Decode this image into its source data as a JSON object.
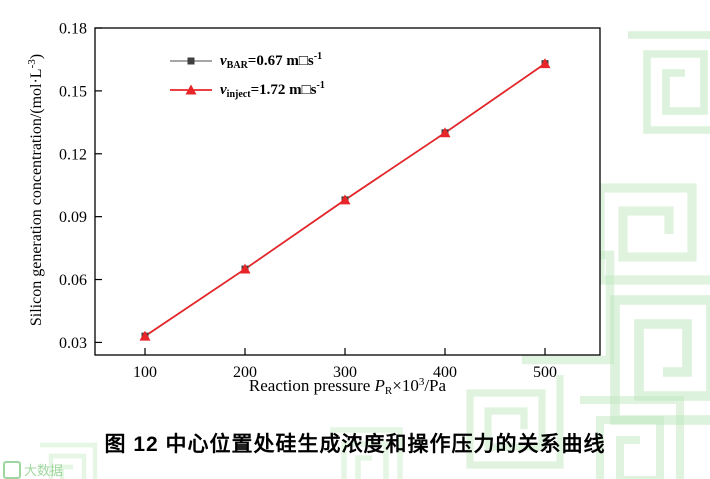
{
  "chart_data": {
    "type": "line",
    "title": "",
    "xlabel_parts": {
      "pre": "Reaction pressure ",
      "var": "P",
      "sub": "R",
      "mid": "×10",
      "sup": "3",
      "end": "/Pa"
    },
    "ylabel_parts": {
      "pre": "Silicon generation concentration/(mol·L",
      "sup": "-3",
      "end": ")"
    },
    "x": [
      100,
      200,
      300,
      400,
      500
    ],
    "xticks": [
      "100",
      "200",
      "300",
      "400",
      "500"
    ],
    "yticks": [
      "0.03",
      "0.06",
      "0.09",
      "0.12",
      "0.15",
      "0.18"
    ],
    "xlim": [
      50,
      555
    ],
    "ylim": [
      0.024,
      0.18
    ],
    "grid": false,
    "legend_position": "inside-top-left",
    "series": [
      {
        "name_parts": {
          "var": "v",
          "sub": "BAR",
          "eq": "=0.67 m□s",
          "sup": "-1"
        },
        "marker": "square",
        "marker_color": "#3f3f3f",
        "line_color": "#9a9a9a",
        "values": [
          0.033,
          0.065,
          0.098,
          0.13,
          0.163
        ]
      },
      {
        "name_parts": {
          "var": "v",
          "sub": "inject",
          "eq": "=1.72 m□s",
          "sup": "-1"
        },
        "marker": "triangle",
        "marker_color": "#e8262a",
        "line_color": "#e8262a",
        "values": [
          0.033,
          0.065,
          0.098,
          0.13,
          0.163
        ]
      }
    ]
  },
  "caption": "图 12 中心位置处硅生成浓度和操作压力的关系曲线",
  "watermark": {
    "badge_text": "大数据",
    "pattern_color": "#bfe8bf"
  }
}
